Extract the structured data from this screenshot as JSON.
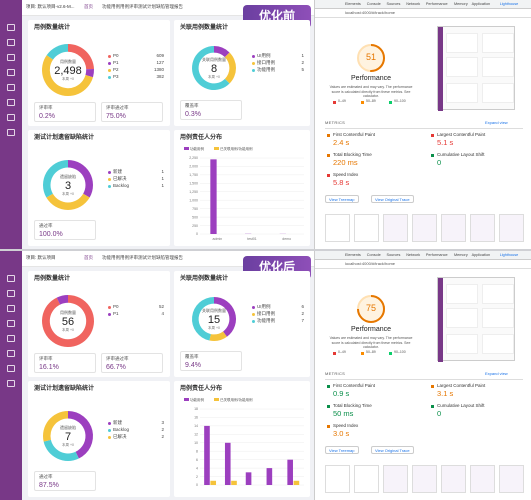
{
  "panels": [
    {
      "badge": "优化前",
      "breadcrumb": "项目: 默认项目-v2.6-M...",
      "nav_tabs": [
        "首页",
        "功能用例",
        "用例评审",
        "测试计划",
        "缺陷管理",
        "报告"
      ],
      "case_stats": {
        "title": "用例数量统计",
        "center_label": "用例数量",
        "center_value": "2,498",
        "center_note": "本周 +0",
        "legend": [
          {
            "name": "P0",
            "value": 609,
            "color": "#f0645f"
          },
          {
            "name": "P1",
            "value": 127,
            "color": "#9c3fbf"
          },
          {
            "name": "P2",
            "value": 1380,
            "color": "#f5c33b"
          },
          {
            "name": "P3",
            "value": 382,
            "color": "#4fcdd6"
          }
        ],
        "rates": [
          {
            "label": "评审率",
            "value": "0.2%"
          },
          {
            "label": "评审通过率",
            "value": "75.0%"
          }
        ]
      },
      "relevance": {
        "title": "关联用例数量统计",
        "center_label": "关联用例数量",
        "center_value": "8",
        "center_note": "本周 +0",
        "legend": [
          {
            "name": "UI用例",
            "value": 1,
            "color": "#9c3fbf"
          },
          {
            "name": "接口用例",
            "value": 2,
            "color": "#f5c33b"
          },
          {
            "name": "功能用例",
            "value": 5,
            "color": "#4fcdd6"
          }
        ],
        "rates": [
          {
            "label": "覆盖率",
            "value": "0.3%"
          }
        ]
      },
      "plan": {
        "title": "测试计划遗留缺陷统计",
        "center_label": "遗留缺陷",
        "center_value": "3",
        "center_note": "本周 +0",
        "legend": [
          {
            "name": "新建",
            "value": 1,
            "color": "#9c3fbf"
          },
          {
            "name": "已解决",
            "value": 1,
            "color": "#f5c33b"
          },
          {
            "name": "Backlog",
            "value": 1,
            "color": "#4fcdd6"
          }
        ],
        "rates": [
          {
            "label": "通过率",
            "value": "100.0%"
          }
        ]
      },
      "owner": {
        "title": "用例责任人分布",
        "chart": {
          "type": "bar",
          "categories": [
            "admin",
            "test01",
            "demo"
          ],
          "series": [
            {
              "name": "功能用例",
              "color": "#9c3fbf",
              "values": [
                2210,
                6,
                4
              ]
            },
            {
              "name": "已关联用例/功能用例",
              "color": "#f5c33b",
              "values": [
                0,
                0,
                0
              ]
            }
          ],
          "ylim": [
            0,
            2250
          ],
          "yticks": [
            0,
            250,
            500,
            750,
            {
              "value": 1000,
              "label": "1,000"
            },
            {
              "value": 1250,
              "label": "1,250"
            },
            {
              "value": 1500,
              "label": "1,500"
            },
            {
              "value": 1750,
              "label": "1,750"
            },
            {
              "value": 2000,
              "label": "2,000"
            },
            {
              "value": 2250,
              "label": "2,250"
            }
          ],
          "grid": true
        }
      },
      "lighthouse": {
        "tabs": [
          "Elements",
          "Console",
          "Sources",
          "Network",
          "Performance",
          "Memory",
          "Application",
          "Lighthouse"
        ],
        "url": "localhost:4000/#/track/home",
        "score": 51,
        "score_color": "#e67700",
        "score_label": "Performance",
        "note": "Values are estimated and may vary. The performance score is calculated directly from these metrics. See calculator.",
        "legend": [
          {
            "label": "0–49",
            "color": "#e53935"
          },
          {
            "label": "50–89",
            "color": "#fb8c00"
          },
          {
            "label": "90–100",
            "color": "#0cce6b"
          }
        ],
        "metrics_title": "METRICS",
        "expand": "Expand view",
        "metrics": [
          {
            "name": "First Contentful Paint",
            "value": "2.4 s",
            "color": "#e67700"
          },
          {
            "name": "Largest Contentful Paint",
            "value": "5.1 s",
            "color": "#e53935"
          },
          {
            "name": "Total Blocking Time",
            "value": "220 ms",
            "color": "#e67700"
          },
          {
            "name": "Cumulative Layout Shift",
            "value": "0",
            "color": "#0a8f4a"
          },
          {
            "name": "Speed Index",
            "value": "5.8 s",
            "color": "#e53935"
          }
        ],
        "buttons": [
          "View Treemap",
          "View Original Trace"
        ]
      }
    },
    {
      "badge": "优化后",
      "breadcrumb": "项目: 默认项目",
      "nav_tabs": [
        "首页",
        "功能用例",
        "用例评审",
        "测试计划",
        "缺陷管理",
        "报告"
      ],
      "case_stats": {
        "title": "用例数量统计",
        "center_label": "用例数量",
        "center_value": "56",
        "center_note": "本周 +0",
        "legend": [
          {
            "name": "P0",
            "value": 52,
            "color": "#f0645f"
          },
          {
            "name": "P1",
            "value": 4,
            "color": "#9c3fbf"
          }
        ],
        "rates": [
          {
            "label": "评审率",
            "value": "16.1%"
          },
          {
            "label": "评审通过率",
            "value": "66.7%"
          }
        ]
      },
      "relevance": {
        "title": "关联用例数量统计",
        "center_label": "关联用例数量",
        "center_value": "15",
        "center_note": "本周 +0",
        "legend": [
          {
            "name": "UI用例",
            "value": 6,
            "color": "#9c3fbf"
          },
          {
            "name": "接口用例",
            "value": 2,
            "color": "#f5c33b"
          },
          {
            "name": "功能用例",
            "value": 7,
            "color": "#4fcdd6"
          }
        ],
        "rates": [
          {
            "label": "覆盖率",
            "value": "9.4%"
          }
        ]
      },
      "plan": {
        "title": "测试计划遗留缺陷统计",
        "center_label": "遗留缺陷",
        "center_value": "7",
        "center_note": "本周 +0",
        "legend": [
          {
            "name": "新建",
            "value": 3,
            "color": "#9c3fbf"
          },
          {
            "name": "Backlog",
            "value": 2,
            "color": "#4fcdd6"
          },
          {
            "name": "已解决",
            "value": 2,
            "color": "#f5c33b"
          }
        ],
        "rates": [
          {
            "label": "通过率",
            "value": "87.5%"
          }
        ]
      },
      "owner": {
        "title": "用例责任人分布",
        "chart": {
          "type": "bar",
          "categories": [
            null,
            null,
            null,
            null,
            null
          ],
          "series": [
            {
              "name": "功能用例",
              "color": "#9c3fbf",
              "values": [
                14,
                10,
                3,
                4,
                6
              ]
            },
            {
              "name": "已关联用例/功能用例",
              "color": "#f5c33b",
              "values": [
                1,
                1,
                0,
                0,
                1
              ]
            }
          ],
          "ylim": [
            0,
            18
          ],
          "yticks": [
            0,
            2,
            4,
            6,
            8,
            10,
            12,
            14,
            16,
            18
          ],
          "grid": true
        }
      },
      "lighthouse": {
        "tabs": [
          "Elements",
          "Console",
          "Sources",
          "Network",
          "Performance",
          "Memory",
          "Application",
          "Lighthouse"
        ],
        "url": "localhost:4000/#/track/home",
        "score": 75,
        "score_color": "#e67700",
        "score_label": "Performance",
        "note": "Values are estimated and may vary. The performance score is calculated directly from these metrics. See calculator.",
        "legend": [
          {
            "label": "0–49",
            "color": "#e53935"
          },
          {
            "label": "50–89",
            "color": "#fb8c00"
          },
          {
            "label": "90–100",
            "color": "#0cce6b"
          }
        ],
        "metrics_title": "METRICS",
        "expand": "Expand view",
        "metrics": [
          {
            "name": "First Contentful Paint",
            "value": "0.9 s",
            "color": "#0a8f4a"
          },
          {
            "name": "Largest Contentful Paint",
            "value": "3.1 s",
            "color": "#e67700"
          },
          {
            "name": "Total Blocking Time",
            "value": "50 ms",
            "color": "#0a8f4a"
          },
          {
            "name": "Cumulative Layout Shift",
            "value": "0",
            "color": "#0a8f4a"
          },
          {
            "name": "Speed Index",
            "value": "3.0 s",
            "color": "#e67700"
          }
        ],
        "buttons": [
          "View Treemap",
          "View Original Trace"
        ]
      }
    }
  ]
}
